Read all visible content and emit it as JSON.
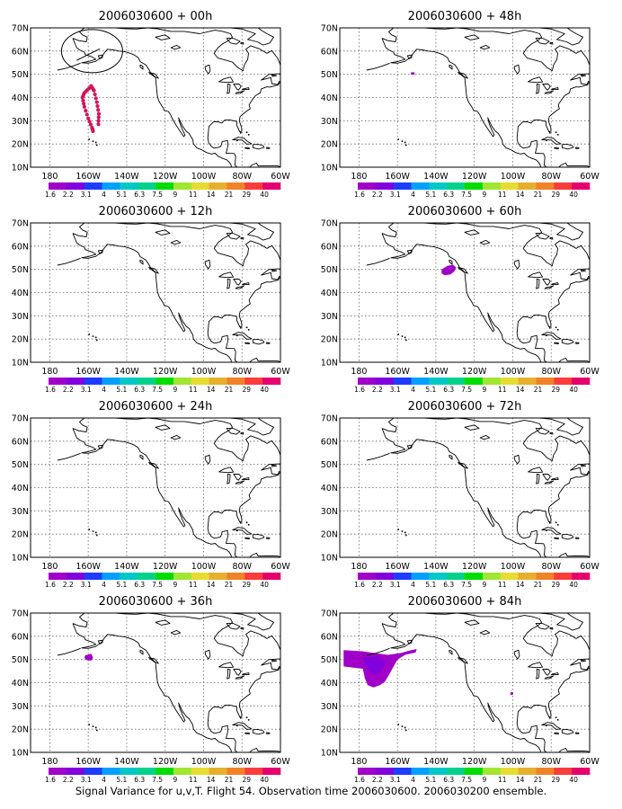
{
  "caption": "Signal Variance for u,v,T. Flight 54. Observation time 2006030600. 2006030200 ensemble.",
  "lon_labels": [
    "180",
    "160W",
    "140W",
    "120W",
    "100W",
    "80W",
    "60W"
  ],
  "lat_labels": [
    "10N",
    "20N",
    "30N",
    "40N",
    "50N",
    "60N",
    "70N"
  ],
  "colorbar": {
    "colors": [
      "#a000c8",
      "#8200dc",
      "#1e3cff",
      "#00a0ff",
      "#00c8c8",
      "#00d28c",
      "#00dc00",
      "#a0e632",
      "#e6dc32",
      "#e6af2d",
      "#f08228",
      "#fa3c3c",
      "#e6006e"
    ],
    "labels": [
      "1.6",
      "2.2",
      "3.1",
      "4",
      "5.1",
      "6.3",
      "7.5",
      "9",
      "11",
      "14",
      "21",
      "29",
      "40"
    ]
  },
  "panels": [
    {
      "id": "00h",
      "title": "2006030600 + 00h",
      "col": 0,
      "row": 0,
      "features": [
        "circle",
        "dots"
      ]
    },
    {
      "id": "12h",
      "title": "2006030600 + 12h",
      "col": 0,
      "row": 1,
      "features": []
    },
    {
      "id": "24h",
      "title": "2006030600 + 24h",
      "col": 0,
      "row": 2,
      "features": []
    },
    {
      "id": "36h",
      "title": "2006030600 + 36h",
      "col": 0,
      "row": 3,
      "features": [
        "blob36"
      ]
    },
    {
      "id": "48h",
      "title": "2006030600 + 48h",
      "col": 1,
      "row": 0,
      "features": [
        "blob48"
      ]
    },
    {
      "id": "60h",
      "title": "2006030600 + 60h",
      "col": 1,
      "row": 1,
      "features": [
        "blob60"
      ]
    },
    {
      "id": "72h",
      "title": "2006030600 + 72h",
      "col": 1,
      "row": 2,
      "features": []
    },
    {
      "id": "84h",
      "title": "2006030600 + 84h",
      "col": 1,
      "row": 3,
      "features": [
        "blob84"
      ]
    }
  ]
}
